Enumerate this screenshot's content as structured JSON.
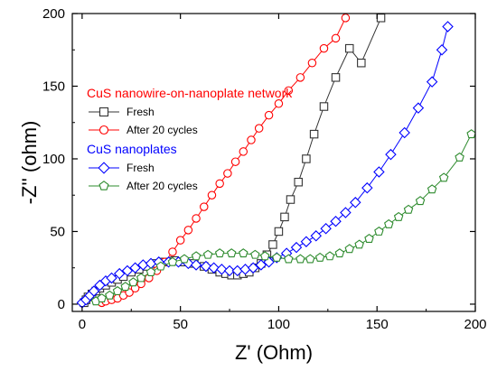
{
  "chart_data": {
    "type": "scatter",
    "xlabel": "Z' (Ohm)",
    "ylabel": "-Z'' (ohm)",
    "xlim": [
      -5,
      200
    ],
    "ylim": [
      -5,
      200
    ],
    "x_ticks": [
      "0",
      "50",
      "100",
      "150",
      "200"
    ],
    "y_ticks": [
      "0",
      "50",
      "100",
      "150",
      "200"
    ],
    "legend_groups": [
      {
        "label": "CuS nanowire-on-nanoplate network",
        "color": "#ff0000",
        "entries": [
          {
            "label": "Fresh",
            "series": 0
          },
          {
            "label": "After 20 cycles",
            "series": 1
          }
        ]
      },
      {
        "label": "CuS nanoplates",
        "color": "#0000ff",
        "entries": [
          {
            "label": "Fresh",
            "series": 2
          },
          {
            "label": "After 20 cycles",
            "series": 3
          }
        ]
      }
    ],
    "series": [
      {
        "color": "#333333",
        "marker": "square",
        "points": [
          [
            1,
            1
          ],
          [
            2,
            3
          ],
          [
            3,
            5
          ],
          [
            5,
            7
          ],
          [
            7,
            9
          ],
          [
            9,
            11
          ],
          [
            12,
            13
          ],
          [
            15,
            15
          ],
          [
            18,
            17
          ],
          [
            21,
            19
          ],
          [
            25,
            22
          ],
          [
            29,
            24
          ],
          [
            33,
            26
          ],
          [
            37,
            28
          ],
          [
            42,
            29
          ],
          [
            47,
            30
          ],
          [
            52,
            29
          ],
          [
            57,
            28
          ],
          [
            62,
            26
          ],
          [
            66,
            24
          ],
          [
            70,
            22
          ],
          [
            73,
            21
          ],
          [
            76,
            20
          ],
          [
            79,
            20
          ],
          [
            82,
            21
          ],
          [
            85,
            22
          ],
          [
            88,
            25
          ],
          [
            91,
            28
          ],
          [
            94,
            34
          ],
          [
            97,
            41
          ],
          [
            100,
            50
          ],
          [
            103,
            60
          ],
          [
            106,
            72
          ],
          [
            110,
            84
          ],
          [
            114,
            100
          ],
          [
            118,
            117
          ],
          [
            123,
            136
          ],
          [
            129,
            156
          ],
          [
            136,
            176
          ],
          [
            142,
            166
          ],
          [
            152,
            197
          ]
        ]
      },
      {
        "color": "#ff0000",
        "marker": "circle",
        "points": [
          [
            10,
            1
          ],
          [
            12,
            2
          ],
          [
            15,
            3
          ],
          [
            18,
            4
          ],
          [
            21,
            6
          ],
          [
            24,
            8
          ],
          [
            27,
            11
          ],
          [
            30,
            14
          ],
          [
            34,
            18
          ],
          [
            38,
            23
          ],
          [
            42,
            29
          ],
          [
            46,
            36
          ],
          [
            50,
            44
          ],
          [
            54,
            51
          ],
          [
            58,
            59
          ],
          [
            62,
            67
          ],
          [
            66,
            75
          ],
          [
            70,
            83
          ],
          [
            74,
            90
          ],
          [
            78,
            98
          ],
          [
            82,
            105
          ],
          [
            86,
            113
          ],
          [
            90,
            121
          ],
          [
            95,
            130
          ],
          [
            100,
            138
          ],
          [
            105,
            147
          ],
          [
            111,
            156
          ],
          [
            117,
            166
          ],
          [
            123,
            176
          ],
          [
            129,
            183
          ],
          [
            134,
            197
          ]
        ]
      },
      {
        "color": "#0000ff",
        "marker": "diamond",
        "points": [
          [
            0,
            1
          ],
          [
            2,
            3
          ],
          [
            4,
            6
          ],
          [
            6,
            9
          ],
          [
            9,
            13
          ],
          [
            12,
            16
          ],
          [
            15,
            18
          ],
          [
            19,
            21
          ],
          [
            23,
            23
          ],
          [
            27,
            25
          ],
          [
            31,
            27
          ],
          [
            35,
            28
          ],
          [
            39,
            29
          ],
          [
            44,
            29
          ],
          [
            49,
            29
          ],
          [
            54,
            28
          ],
          [
            58,
            27
          ],
          [
            63,
            26
          ],
          [
            67,
            25
          ],
          [
            71,
            24
          ],
          [
            75,
            23
          ],
          [
            79,
            23
          ],
          [
            83,
            24
          ],
          [
            87,
            25
          ],
          [
            91,
            27
          ],
          [
            95,
            29
          ],
          [
            99,
            32
          ],
          [
            104,
            35
          ],
          [
            109,
            39
          ],
          [
            114,
            43
          ],
          [
            119,
            47
          ],
          [
            124,
            52
          ],
          [
            129,
            57
          ],
          [
            134,
            63
          ],
          [
            139,
            70
          ],
          [
            145,
            80
          ],
          [
            151,
            91
          ],
          [
            157,
            103
          ],
          [
            164,
            118
          ],
          [
            171,
            135
          ],
          [
            178,
            153
          ],
          [
            183,
            175
          ],
          [
            186,
            191
          ]
        ]
      },
      {
        "color": "#2e8b2e",
        "marker": "pentagon",
        "points": [
          [
            7,
            2
          ],
          [
            10,
            4
          ],
          [
            14,
            6
          ],
          [
            18,
            9
          ],
          [
            22,
            12
          ],
          [
            26,
            15
          ],
          [
            30,
            18
          ],
          [
            35,
            22
          ],
          [
            40,
            26
          ],
          [
            46,
            29
          ],
          [
            52,
            31
          ],
          [
            58,
            33
          ],
          [
            64,
            34
          ],
          [
            70,
            35
          ],
          [
            76,
            35
          ],
          [
            82,
            35
          ],
          [
            88,
            34
          ],
          [
            93,
            33
          ],
          [
            99,
            32
          ],
          [
            105,
            31
          ],
          [
            111,
            31
          ],
          [
            116,
            31
          ],
          [
            121,
            32
          ],
          [
            126,
            33
          ],
          [
            131,
            35
          ],
          [
            136,
            38
          ],
          [
            141,
            41
          ],
          [
            146,
            45
          ],
          [
            151,
            50
          ],
          [
            156,
            55
          ],
          [
            161,
            60
          ],
          [
            166,
            65
          ],
          [
            172,
            71
          ],
          [
            178,
            79
          ],
          [
            184,
            87
          ],
          [
            192,
            101
          ],
          [
            198,
            117
          ]
        ]
      }
    ]
  }
}
